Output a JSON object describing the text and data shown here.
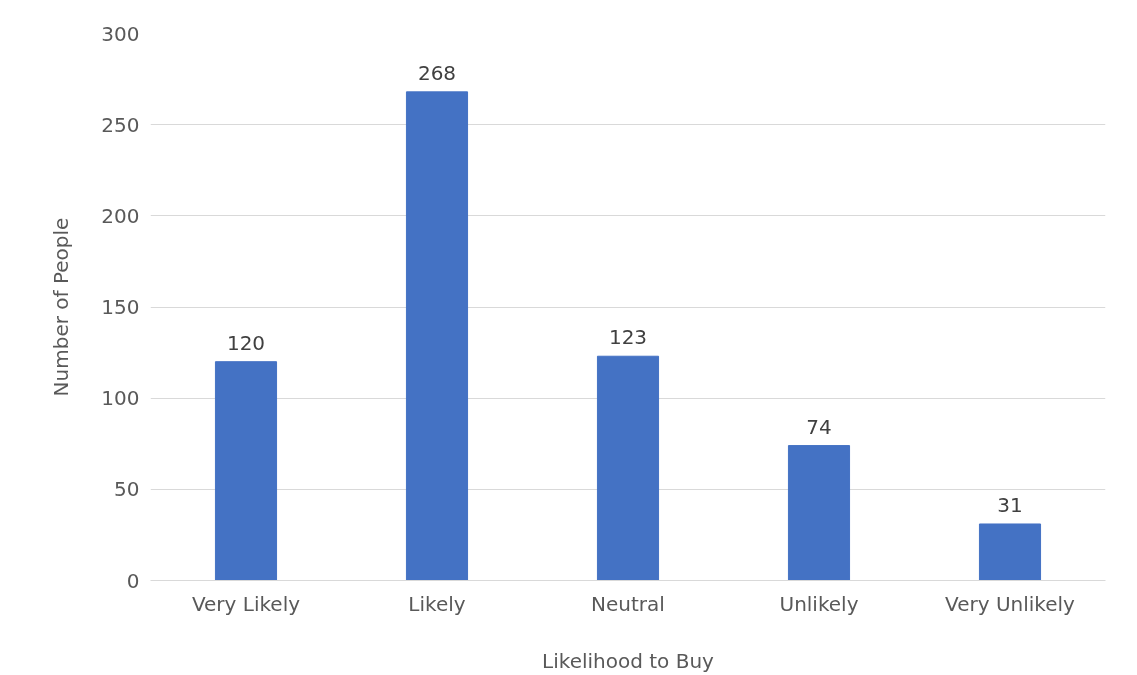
{
  "chart_data": {
    "type": "bar",
    "xlabel": "Likelihood to Buy",
    "ylabel": "Number of People",
    "categories": [
      "Very Likely",
      "Likely",
      "Neutral",
      "Unlikely",
      "Very Unlikely"
    ],
    "values": [
      120,
      268,
      123,
      74,
      31
    ],
    "color": "#4472c4",
    "ylim": [
      0,
      300
    ],
    "yticks": [
      0,
      50,
      100,
      150,
      200,
      250,
      300
    ],
    "grid": "y",
    "data_labels": true
  }
}
